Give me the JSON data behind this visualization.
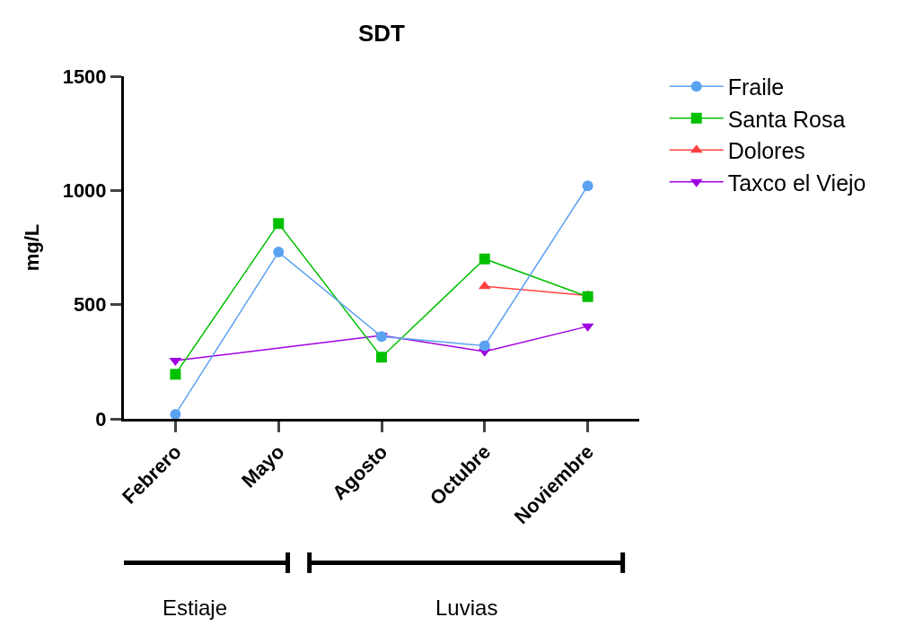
{
  "chart_data": {
    "type": "line",
    "title": "SDT",
    "ylabel": "mg/L",
    "categories": [
      "Febrero",
      "Mayo",
      "Agosto",
      "Octubre",
      "Noviembre"
    ],
    "series": [
      {
        "name": "Fraile",
        "color": "#5aa2f0",
        "marker": "circle",
        "values": [
          20,
          730,
          360,
          320,
          1020
        ]
      },
      {
        "name": "Santa Rosa",
        "color": "#00c000",
        "marker": "square",
        "values": [
          195,
          855,
          270,
          700,
          535
        ]
      },
      {
        "name": "Dolores",
        "color": "#ff4040",
        "marker": "triangle",
        "values": [
          null,
          null,
          null,
          580,
          540
        ]
      },
      {
        "name": "Taxco el Viejo",
        "color": "#a000e0",
        "marker": "triangle-down",
        "values": [
          255,
          null,
          365,
          295,
          405
        ]
      }
    ],
    "ylim": [
      0,
      1500
    ],
    "yticks": [
      0,
      500,
      1000,
      1500
    ],
    "legend": "top right",
    "annotations": [
      "Estiaje",
      "Luvias"
    ]
  }
}
